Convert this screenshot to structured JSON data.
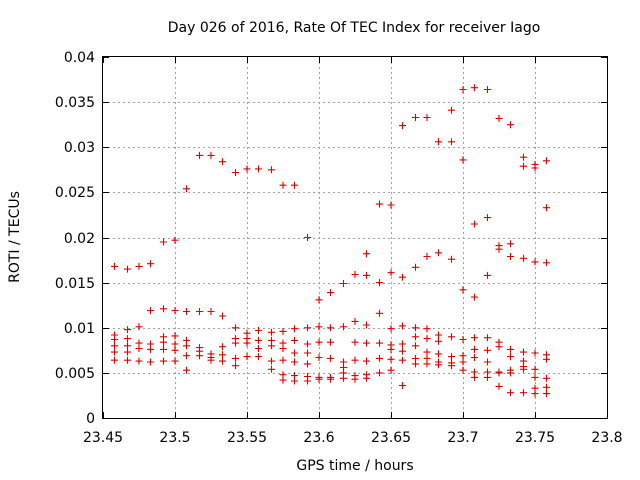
{
  "chart_data": {
    "type": "scatter",
    "title": "Day 026 of 2016, Rate Of TEC Index for receiver Iago",
    "xlabel": "GPS time / hours",
    "ylabel": "ROTI / TECUs",
    "xlim": [
      23.45,
      23.8
    ],
    "ylim": [
      0,
      0.04
    ],
    "xticks": [
      23.45,
      23.5,
      23.55,
      23.6,
      23.65,
      23.7,
      23.75,
      23.8
    ],
    "xtick_labels": [
      "23.45",
      "23.5",
      "23.55",
      "23.6",
      "23.65",
      "23.7",
      "23.75",
      "23.8"
    ],
    "yticks": [
      0,
      0.005,
      0.01,
      0.015,
      0.02,
      0.025,
      0.03,
      0.035,
      0.04
    ],
    "ytick_labels": [
      "0",
      "0.005",
      "0.01",
      "0.015",
      "0.02",
      "0.025",
      "0.03",
      "0.035",
      "0.04"
    ],
    "grid": true,
    "marker": "+",
    "color": "#e00000",
    "series": [
      {
        "name": "ROTI",
        "points": [
          [
            23.458,
            0.0168
          ],
          [
            23.458,
            0.0092
          ],
          [
            23.458,
            0.0087
          ],
          [
            23.458,
            0.008
          ],
          [
            23.458,
            0.0073
          ],
          [
            23.458,
            0.0064
          ],
          [
            23.467,
            0.0165
          ],
          [
            23.467,
            0.0098
          ],
          [
            23.467,
            0.0088
          ],
          [
            23.467,
            0.008
          ],
          [
            23.467,
            0.0073
          ],
          [
            23.467,
            0.0064
          ],
          [
            23.475,
            0.0168
          ],
          [
            23.475,
            0.0101
          ],
          [
            23.475,
            0.0083
          ],
          [
            23.475,
            0.0077
          ],
          [
            23.475,
            0.0063
          ],
          [
            23.483,
            0.0171
          ],
          [
            23.483,
            0.0119
          ],
          [
            23.483,
            0.0082
          ],
          [
            23.483,
            0.0076
          ],
          [
            23.483,
            0.0062
          ],
          [
            23.492,
            0.0195
          ],
          [
            23.492,
            0.0121
          ],
          [
            23.492,
            0.009
          ],
          [
            23.492,
            0.0084
          ],
          [
            23.492,
            0.0076
          ],
          [
            23.492,
            0.0063
          ],
          [
            23.5,
            0.0197
          ],
          [
            23.5,
            0.0119
          ],
          [
            23.5,
            0.0091
          ],
          [
            23.5,
            0.0082
          ],
          [
            23.5,
            0.0075
          ],
          [
            23.5,
            0.0063
          ],
          [
            23.508,
            0.0254
          ],
          [
            23.508,
            0.0118
          ],
          [
            23.508,
            0.0086
          ],
          [
            23.508,
            0.008
          ],
          [
            23.508,
            0.0069
          ],
          [
            23.508,
            0.0053
          ],
          [
            23.517,
            0.0291
          ],
          [
            23.517,
            0.0118
          ],
          [
            23.517,
            0.0078
          ],
          [
            23.517,
            0.0074
          ],
          [
            23.517,
            0.0069
          ],
          [
            23.525,
            0.0291
          ],
          [
            23.525,
            0.0118
          ],
          [
            23.525,
            0.0071
          ],
          [
            23.525,
            0.0067
          ],
          [
            23.525,
            0.0064
          ],
          [
            23.533,
            0.0284
          ],
          [
            23.533,
            0.0113
          ],
          [
            23.533,
            0.0079
          ],
          [
            23.533,
            0.007
          ],
          [
            23.533,
            0.0063
          ],
          [
            23.542,
            0.0272
          ],
          [
            23.542,
            0.01
          ],
          [
            23.542,
            0.0088
          ],
          [
            23.542,
            0.0083
          ],
          [
            23.542,
            0.0066
          ],
          [
            23.542,
            0.0058
          ],
          [
            23.55,
            0.0276
          ],
          [
            23.55,
            0.0094
          ],
          [
            23.55,
            0.0088
          ],
          [
            23.55,
            0.0083
          ],
          [
            23.55,
            0.0068
          ],
          [
            23.558,
            0.0276
          ],
          [
            23.558,
            0.0097
          ],
          [
            23.558,
            0.0086
          ],
          [
            23.558,
            0.0077
          ],
          [
            23.558,
            0.0068
          ],
          [
            23.567,
            0.0275
          ],
          [
            23.567,
            0.0095
          ],
          [
            23.567,
            0.0086
          ],
          [
            23.567,
            0.008
          ],
          [
            23.567,
            0.0063
          ],
          [
            23.567,
            0.0054
          ],
          [
            23.575,
            0.0258
          ],
          [
            23.575,
            0.0096
          ],
          [
            23.575,
            0.0083
          ],
          [
            23.575,
            0.0077
          ],
          [
            23.575,
            0.0064
          ],
          [
            23.575,
            0.0048
          ],
          [
            23.575,
            0.0042
          ],
          [
            23.583,
            0.0258
          ],
          [
            23.583,
            0.0099
          ],
          [
            23.583,
            0.0086
          ],
          [
            23.583,
            0.0072
          ],
          [
            23.583,
            0.0062
          ],
          [
            23.583,
            0.0047
          ],
          [
            23.583,
            0.0041
          ],
          [
            23.592,
            0.02
          ],
          [
            23.592,
            0.01
          ],
          [
            23.592,
            0.0082
          ],
          [
            23.592,
            0.0072
          ],
          [
            23.592,
            0.006
          ],
          [
            23.592,
            0.0046
          ],
          [
            23.592,
            0.0041
          ],
          [
            23.6,
            0.0131
          ],
          [
            23.6,
            0.0101
          ],
          [
            23.6,
            0.0084
          ],
          [
            23.6,
            0.0067
          ],
          [
            23.6,
            0.0045
          ],
          [
            23.6,
            0.0043
          ],
          [
            23.608,
            0.0139
          ],
          [
            23.608,
            0.01
          ],
          [
            23.608,
            0.0084
          ],
          [
            23.608,
            0.0066
          ],
          [
            23.608,
            0.0045
          ],
          [
            23.608,
            0.0043
          ],
          [
            23.617,
            0.0149
          ],
          [
            23.617,
            0.0101
          ],
          [
            23.617,
            0.0062
          ],
          [
            23.617,
            0.0056
          ],
          [
            23.617,
            0.005
          ],
          [
            23.617,
            0.0044
          ],
          [
            23.625,
            0.0159
          ],
          [
            23.625,
            0.0107
          ],
          [
            23.625,
            0.0084
          ],
          [
            23.625,
            0.0064
          ],
          [
            23.625,
            0.0047
          ],
          [
            23.625,
            0.0043
          ],
          [
            23.633,
            0.0182
          ],
          [
            23.633,
            0.0158
          ],
          [
            23.633,
            0.0103
          ],
          [
            23.633,
            0.0083
          ],
          [
            23.633,
            0.0063
          ],
          [
            23.633,
            0.0048
          ],
          [
            23.633,
            0.0044
          ],
          [
            23.642,
            0.0237
          ],
          [
            23.642,
            0.015
          ],
          [
            23.642,
            0.0116
          ],
          [
            23.642,
            0.0083
          ],
          [
            23.642,
            0.0066
          ],
          [
            23.642,
            0.005
          ],
          [
            23.65,
            0.0236
          ],
          [
            23.65,
            0.0161
          ],
          [
            23.65,
            0.0099
          ],
          [
            23.65,
            0.0081
          ],
          [
            23.65,
            0.0076
          ],
          [
            23.65,
            0.0065
          ],
          [
            23.65,
            0.0053
          ],
          [
            23.658,
            0.0324
          ],
          [
            23.658,
            0.0156
          ],
          [
            23.658,
            0.0102
          ],
          [
            23.658,
            0.0082
          ],
          [
            23.658,
            0.0074
          ],
          [
            23.658,
            0.0064
          ],
          [
            23.658,
            0.0036
          ],
          [
            23.667,
            0.0333
          ],
          [
            23.667,
            0.0167
          ],
          [
            23.667,
            0.01
          ],
          [
            23.667,
            0.009
          ],
          [
            23.667,
            0.008
          ],
          [
            23.667,
            0.0066
          ],
          [
            23.667,
            0.006
          ],
          [
            23.675,
            0.0333
          ],
          [
            23.675,
            0.0179
          ],
          [
            23.675,
            0.0099
          ],
          [
            23.675,
            0.0088
          ],
          [
            23.675,
            0.0073
          ],
          [
            23.675,
            0.0066
          ],
          [
            23.675,
            0.006
          ],
          [
            23.683,
            0.0306
          ],
          [
            23.683,
            0.0183
          ],
          [
            23.683,
            0.0092
          ],
          [
            23.683,
            0.0085
          ],
          [
            23.683,
            0.0071
          ],
          [
            23.683,
            0.0062
          ],
          [
            23.683,
            0.0059
          ],
          [
            23.692,
            0.0341
          ],
          [
            23.692,
            0.0306
          ],
          [
            23.692,
            0.0176
          ],
          [
            23.692,
            0.009
          ],
          [
            23.692,
            0.0068
          ],
          [
            23.692,
            0.0061
          ],
          [
            23.692,
            0.0058
          ],
          [
            23.7,
            0.0364
          ],
          [
            23.7,
            0.0286
          ],
          [
            23.7,
            0.0142
          ],
          [
            23.7,
            0.0087
          ],
          [
            23.7,
            0.0069
          ],
          [
            23.7,
            0.0062
          ],
          [
            23.7,
            0.0053
          ],
          [
            23.708,
            0.0366
          ],
          [
            23.708,
            0.0215
          ],
          [
            23.708,
            0.0134
          ],
          [
            23.708,
            0.0089
          ],
          [
            23.708,
            0.0076
          ],
          [
            23.708,
            0.0067
          ],
          [
            23.708,
            0.0051
          ],
          [
            23.708,
            0.0045
          ],
          [
            23.717,
            0.0364
          ],
          [
            23.717,
            0.0222
          ],
          [
            23.717,
            0.0158
          ],
          [
            23.717,
            0.0089
          ],
          [
            23.717,
            0.0075
          ],
          [
            23.717,
            0.0062
          ],
          [
            23.717,
            0.0051
          ],
          [
            23.717,
            0.0045
          ],
          [
            23.725,
            0.0332
          ],
          [
            23.725,
            0.0191
          ],
          [
            23.725,
            0.0187
          ],
          [
            23.725,
            0.0084
          ],
          [
            23.725,
            0.0079
          ],
          [
            23.725,
            0.0051
          ],
          [
            23.725,
            0.005
          ],
          [
            23.725,
            0.0035
          ],
          [
            23.733,
            0.0325
          ],
          [
            23.733,
            0.0193
          ],
          [
            23.733,
            0.0179
          ],
          [
            23.733,
            0.0076
          ],
          [
            23.733,
            0.0068
          ],
          [
            23.733,
            0.0053
          ],
          [
            23.733,
            0.005
          ],
          [
            23.733,
            0.0028
          ],
          [
            23.742,
            0.0289
          ],
          [
            23.742,
            0.0279
          ],
          [
            23.742,
            0.0177
          ],
          [
            23.742,
            0.0073
          ],
          [
            23.742,
            0.0063
          ],
          [
            23.742,
            0.0057
          ],
          [
            23.742,
            0.0054
          ],
          [
            23.742,
            0.0028
          ],
          [
            23.75,
            0.0281
          ],
          [
            23.75,
            0.0277
          ],
          [
            23.75,
            0.0173
          ],
          [
            23.75,
            0.0072
          ],
          [
            23.75,
            0.0054
          ],
          [
            23.75,
            0.0045
          ],
          [
            23.75,
            0.0033
          ],
          [
            23.75,
            0.0027
          ],
          [
            23.758,
            0.0285
          ],
          [
            23.758,
            0.0233
          ],
          [
            23.758,
            0.0172
          ],
          [
            23.758,
            0.007
          ],
          [
            23.758,
            0.0065
          ],
          [
            23.758,
            0.0044
          ],
          [
            23.758,
            0.0034
          ],
          [
            23.758,
            0.0027
          ]
        ]
      }
    ]
  }
}
